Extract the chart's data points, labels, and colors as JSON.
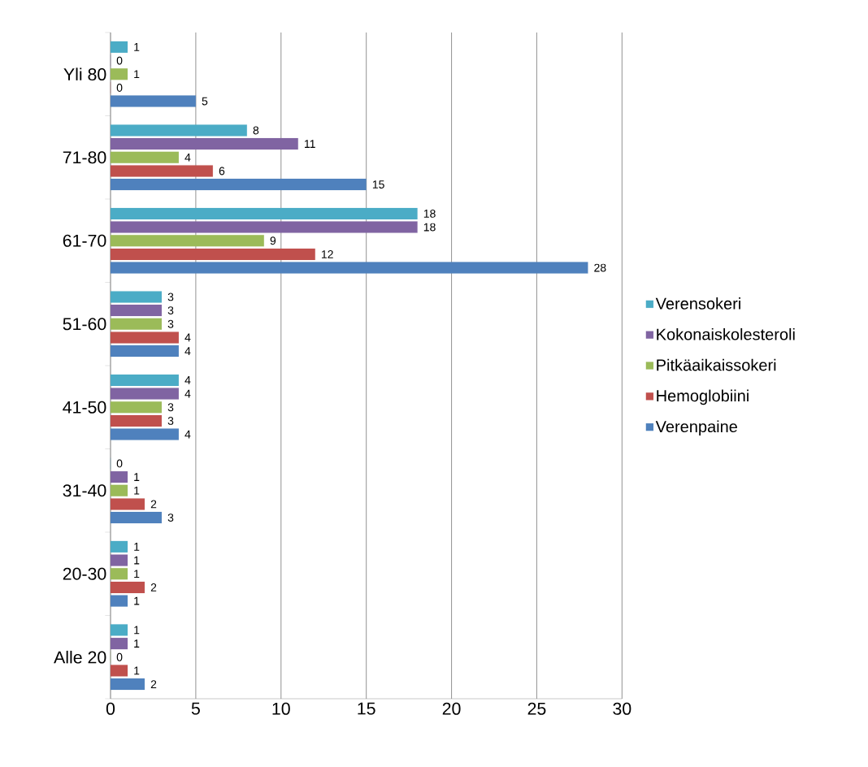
{
  "chart_data": {
    "type": "bar",
    "orientation": "horizontal",
    "categories": [
      "Yli 80",
      "71-80",
      "61-70",
      "51-60",
      "41-50",
      "31-40",
      "20-30",
      "Alle 20"
    ],
    "series": [
      {
        "name": "Verenpaine",
        "color": "#4f81bd",
        "values": [
          5,
          15,
          28,
          4,
          4,
          3,
          1,
          2
        ]
      },
      {
        "name": "Hemoglobiini",
        "color": "#c0504d",
        "values": [
          0,
          6,
          12,
          4,
          3,
          2,
          2,
          1
        ]
      },
      {
        "name": "Pitkäaikaissokeri",
        "color": "#9bbb59",
        "values": [
          1,
          4,
          9,
          3,
          3,
          1,
          1,
          0
        ]
      },
      {
        "name": "Kokonaiskolesteroli",
        "color": "#8064a2",
        "values": [
          0,
          11,
          18,
          3,
          4,
          1,
          1,
          1
        ]
      },
      {
        "name": "Verensokeri",
        "color": "#4bacc6",
        "values": [
          1,
          8,
          18,
          3,
          4,
          0,
          1,
          1
        ]
      }
    ],
    "xlim": [
      0,
      30
    ],
    "xticks": [
      0,
      5,
      10,
      15,
      20,
      25,
      30
    ],
    "grid": "x",
    "legend": "right",
    "data_labels": true
  }
}
